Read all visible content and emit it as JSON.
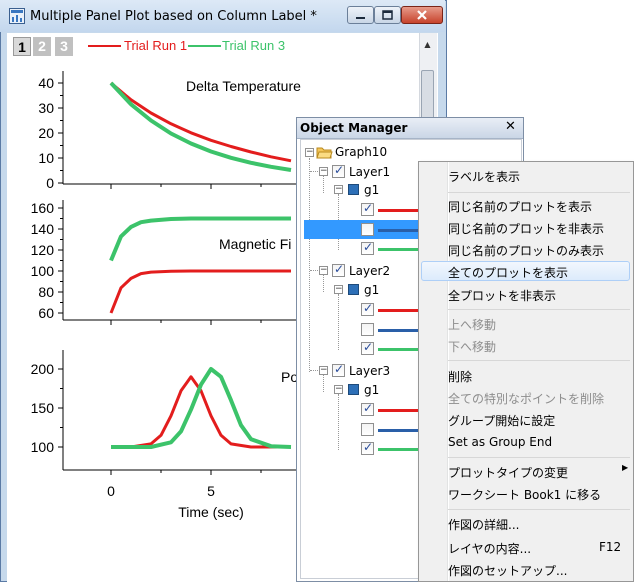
{
  "window": {
    "title": "Multiple Panel Plot based on Column Label *",
    "icon": "origin-graph-icon",
    "buttons": [
      "minimize",
      "maximize",
      "close"
    ]
  },
  "layer_tabs": [
    "1",
    "2",
    "3"
  ],
  "legend": [
    {
      "label": "Trial Run 1",
      "color": "#e31d1d"
    },
    {
      "label": "Trial Run 3",
      "color": "#3cc36a"
    }
  ],
  "colors": {
    "red": "#e31d1d",
    "green": "#3cc36a",
    "blue": "#2a5fa8"
  },
  "chart_data": [
    {
      "type": "line",
      "title": "Delta Temperature",
      "ylim": [
        0,
        40
      ],
      "yticks": [
        "0",
        "10",
        "20",
        "30",
        "40"
      ],
      "series": [
        {
          "name": "Trial Run 1",
          "x": [
            0,
            1,
            2,
            3,
            4,
            5,
            6,
            7,
            8,
            9
          ],
          "values": [
            40,
            33.3,
            28,
            23.7,
            20.1,
            17.1,
            14.6,
            12.4,
            10.5,
            8.9
          ]
        },
        {
          "name": "Trial Run 3",
          "x": [
            0,
            1,
            2,
            3,
            4,
            5,
            6,
            7,
            8,
            9
          ],
          "values": [
            40,
            31.5,
            25,
            19.8,
            15.8,
            12.6,
            10.1,
            8.1,
            6.5,
            5.2
          ]
        }
      ]
    },
    {
      "type": "line",
      "title": "Magnetic Fi",
      "ylim": [
        60,
        160
      ],
      "yticks": [
        "60",
        "80",
        "100",
        "120",
        "140",
        "160"
      ],
      "series": [
        {
          "name": "Trial Run 1",
          "x": [
            0,
            0.5,
            1,
            1.5,
            2,
            3,
            4,
            5,
            6,
            7,
            8,
            9
          ],
          "values": [
            60,
            84,
            93,
            97.5,
            99,
            99.8,
            100,
            100,
            100,
            100,
            100,
            100
          ]
        },
        {
          "name": "Trial Run 3",
          "x": [
            0,
            0.5,
            1,
            1.5,
            2,
            3,
            4,
            5,
            6,
            7,
            8,
            9
          ],
          "values": [
            110,
            133,
            142,
            146.5,
            148,
            149.5,
            150,
            150,
            150,
            150,
            150,
            150
          ]
        }
      ]
    },
    {
      "type": "line",
      "title": "Po",
      "ylim": [
        100,
        200
      ],
      "yticks": [
        "100",
        "150",
        "200"
      ],
      "xticks": [
        "0",
        "5"
      ],
      "xlabel": "Time (sec)",
      "series": [
        {
          "name": "Trial Run 1",
          "x": [
            0,
            1,
            2,
            2.5,
            3,
            3.5,
            4,
            4.5,
            5,
            5.5,
            6,
            7,
            8,
            9
          ],
          "values": [
            100,
            100,
            104,
            115,
            140,
            172,
            190,
            172,
            140,
            115,
            104,
            100,
            100,
            100
          ]
        },
        {
          "name": "Trial Run 3",
          "x": [
            0,
            1,
            2,
            3,
            3.5,
            4,
            4.5,
            5,
            5.5,
            6,
            6.5,
            7,
            8,
            9
          ],
          "values": [
            100,
            100,
            100,
            106,
            120,
            148,
            180,
            200,
            190,
            160,
            128,
            110,
            101,
            100
          ]
        }
      ]
    }
  ],
  "object_manager": {
    "title": "Object Manager",
    "tree": {
      "graph": "Graph10",
      "layers": [
        {
          "name": "Layer1",
          "group": "g1",
          "plots": [
            {
              "color": "#e31d1d",
              "checked": true
            },
            {
              "color": "#2a5fa8",
              "checked": false
            },
            {
              "color": "#3cc36a",
              "checked": true
            }
          ]
        },
        {
          "name": "Layer2",
          "group": "g1",
          "plots": [
            {
              "color": "#e31d1d",
              "checked": true
            },
            {
              "color": "#2a5fa8",
              "checked": false
            },
            {
              "color": "#3cc36a",
              "checked": true
            }
          ]
        },
        {
          "name": "Layer3",
          "group": "g1",
          "plots": [
            {
              "color": "#e31d1d",
              "checked": true
            },
            {
              "color": "#2a5fa8",
              "checked": false
            },
            {
              "color": "#3cc36a",
              "checked": true
            }
          ]
        }
      ]
    }
  },
  "context_menu": {
    "items": [
      {
        "label": "ラベルを表示",
        "enabled": true
      },
      {
        "label": "同じ名前のプロットを表示",
        "enabled": true
      },
      {
        "label": "同じ名前のプロットを非表示",
        "enabled": true
      },
      {
        "label": "同じ名前のプロットのみ表示",
        "enabled": true
      },
      {
        "label": "全てのプロットを表示",
        "enabled": true,
        "highlighted": true
      },
      {
        "label": "全プロットを非表示",
        "enabled": true
      },
      {
        "label": "上へ移動",
        "enabled": false
      },
      {
        "label": "下へ移動",
        "enabled": false
      },
      {
        "label": "削除",
        "enabled": true
      },
      {
        "label": "全ての特別なポイントを削除",
        "enabled": false
      },
      {
        "label": "グループ開始に設定",
        "enabled": true
      },
      {
        "label": "Set as Group End",
        "enabled": true
      },
      {
        "label": "プロットタイプの変更",
        "enabled": true,
        "submenu": true
      },
      {
        "label": "ワークシート Book1 に移る",
        "enabled": true
      },
      {
        "label": "作図の詳細...",
        "enabled": true
      },
      {
        "label": "レイヤの内容...",
        "enabled": true,
        "shortcut": "F12"
      },
      {
        "label": "作図のセットアップ...",
        "enabled": true
      }
    ]
  }
}
